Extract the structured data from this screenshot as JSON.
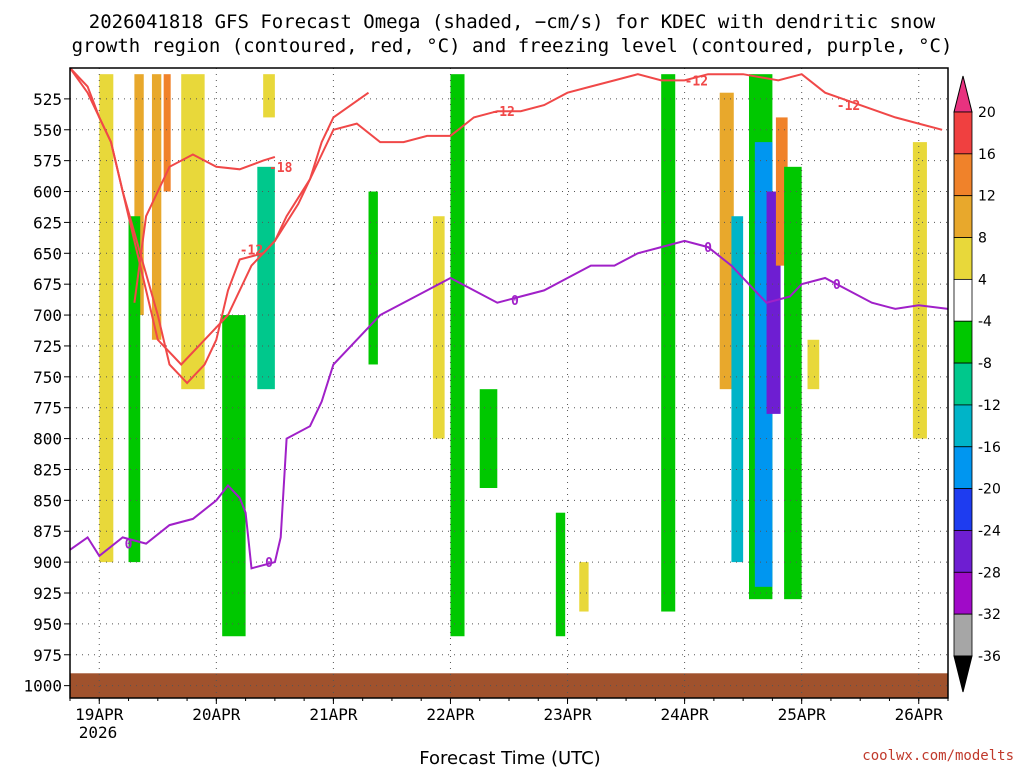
{
  "chart_data": {
    "type": "heatmap",
    "title_line1": "2026041818 GFS Forecast Omega (shaded, −cm/s) for KDEC with dendritic snow",
    "title_line2": "growth region (contoured, red, °C) and freezing level (contoured, purple, °C)",
    "xlabel": "Forecast Time (UTC)",
    "credit": "coolwx.com/modelts",
    "x_ticks": [
      "19APR",
      "20APR",
      "21APR",
      "22APR",
      "23APR",
      "24APR",
      "25APR",
      "26APR"
    ],
    "x_year": "2026",
    "x_start_label_hour": "2026-04-18 18Z",
    "xlim_days": [
      18.75,
      26.25
    ],
    "y_ticks": [
      525,
      550,
      575,
      600,
      625,
      650,
      675,
      700,
      725,
      750,
      775,
      800,
      825,
      850,
      875,
      900,
      925,
      950,
      975,
      1000
    ],
    "ylim_hpa": [
      500,
      1010
    ],
    "colorbar": {
      "levels": [
        20,
        16,
        12,
        8,
        4,
        -4,
        -8,
        -12,
        -16,
        -20,
        -24,
        -28,
        -32,
        -36
      ],
      "colors": [
        "#e8327f",
        "#f04040",
        "#f0822a",
        "#e8a82c",
        "#e8d83a",
        "#ffffff",
        "#00c800",
        "#00c88c",
        "#00b4c8",
        "#0096f0",
        "#1e3cf0",
        "#6e1ed2",
        "#a00ac8",
        "#a6a6a6",
        "#000000"
      ]
    },
    "dgz_contours": [
      {
        "label": "-12",
        "color": "#f04848"
      },
      {
        "label": "-18",
        "color": "#f04848"
      }
    ],
    "freezing_level": {
      "label": "0",
      "color": "#a020c8"
    },
    "line_data": {
      "dgz_top": [
        [
          18.75,
          500
        ],
        [
          18.9,
          515
        ],
        [
          19.0,
          540
        ],
        [
          19.1,
          560
        ],
        [
          19.2,
          600
        ],
        [
          19.4,
          680
        ],
        [
          19.5,
          720
        ],
        [
          19.7,
          740
        ],
        [
          19.9,
          720
        ],
        [
          20.1,
          700
        ],
        [
          20.3,
          660
        ],
        [
          20.5,
          640
        ],
        [
          20.7,
          610
        ],
        [
          20.9,
          570
        ],
        [
          21.0,
          550
        ],
        [
          21.2,
          545
        ],
        [
          21.4,
          560
        ],
        [
          21.6,
          560
        ],
        [
          21.8,
          555
        ],
        [
          22.0,
          555
        ],
        [
          22.2,
          540
        ],
        [
          22.4,
          535
        ],
        [
          22.6,
          535
        ],
        [
          22.8,
          530
        ],
        [
          23.0,
          520
        ],
        [
          23.2,
          515
        ],
        [
          23.4,
          510
        ],
        [
          23.6,
          505
        ],
        [
          23.8,
          510
        ],
        [
          24.0,
          510
        ],
        [
          24.2,
          505
        ],
        [
          24.5,
          505
        ],
        [
          24.8,
          510
        ],
        [
          25.0,
          505
        ],
        [
          25.2,
          520
        ],
        [
          25.5,
          530
        ],
        [
          25.8,
          540
        ],
        [
          26.0,
          545
        ],
        [
          26.2,
          550
        ]
      ],
      "dgz_bottom": [
        [
          18.75,
          500
        ],
        [
          18.9,
          520
        ],
        [
          19.1,
          560
        ],
        [
          19.2,
          600
        ],
        [
          19.35,
          650
        ],
        [
          19.5,
          700
        ],
        [
          19.6,
          740
        ],
        [
          19.75,
          755
        ],
        [
          19.9,
          740
        ],
        [
          20.0,
          720
        ],
        [
          20.1,
          680
        ],
        [
          20.2,
          655
        ],
        [
          20.4,
          650
        ],
        [
          20.5,
          640
        ],
        [
          20.6,
          620
        ],
        [
          20.8,
          590
        ],
        [
          20.9,
          560
        ],
        [
          21.0,
          540
        ],
        [
          21.3,
          520
        ]
      ],
      "dgz_inner": [
        [
          19.3,
          690
        ],
        [
          19.4,
          620
        ],
        [
          19.6,
          580
        ],
        [
          19.8,
          570
        ],
        [
          20.0,
          580
        ],
        [
          20.2,
          582
        ],
        [
          20.4,
          575
        ],
        [
          20.5,
          572
        ]
      ],
      "freezing": [
        [
          18.75,
          890
        ],
        [
          18.9,
          880
        ],
        [
          19.0,
          895
        ],
        [
          19.2,
          880
        ],
        [
          19.4,
          885
        ],
        [
          19.6,
          870
        ],
        [
          19.8,
          865
        ],
        [
          20.0,
          850
        ],
        [
          20.1,
          838
        ],
        [
          20.2,
          848
        ],
        [
          20.25,
          860
        ],
        [
          20.3,
          905
        ],
        [
          20.5,
          900
        ],
        [
          20.55,
          880
        ],
        [
          20.6,
          800
        ],
        [
          20.8,
          790
        ],
        [
          20.9,
          770
        ],
        [
          21.0,
          740
        ],
        [
          21.2,
          720
        ],
        [
          21.4,
          700
        ],
        [
          21.6,
          690
        ],
        [
          21.8,
          680
        ],
        [
          22.0,
          670
        ],
        [
          22.2,
          680
        ],
        [
          22.4,
          690
        ],
        [
          22.6,
          685
        ],
        [
          22.8,
          680
        ],
        [
          23.0,
          670
        ],
        [
          23.2,
          660
        ],
        [
          23.4,
          660
        ],
        [
          23.6,
          650
        ],
        [
          23.8,
          645
        ],
        [
          24.0,
          640
        ],
        [
          24.2,
          645
        ],
        [
          24.4,
          660
        ],
        [
          24.6,
          680
        ],
        [
          24.7,
          690
        ],
        [
          24.9,
          685
        ],
        [
          25.0,
          675
        ],
        [
          25.2,
          670
        ],
        [
          25.4,
          680
        ],
        [
          25.6,
          690
        ],
        [
          25.8,
          695
        ],
        [
          26.0,
          692
        ],
        [
          26.25,
          695
        ]
      ]
    },
    "shaded_regions": [
      {
        "x": 19.0,
        "w": 0.12,
        "p0": 505,
        "p1": 900,
        "v": 6
      },
      {
        "x": 19.3,
        "w": 0.08,
        "p0": 505,
        "p1": 700,
        "v": 8
      },
      {
        "x": 19.45,
        "w": 0.08,
        "p0": 505,
        "p1": 720,
        "v": 10
      },
      {
        "x": 19.55,
        "w": 0.06,
        "p0": 505,
        "p1": 600,
        "v": 14
      },
      {
        "x": 19.7,
        "w": 0.2,
        "p0": 505,
        "p1": 760,
        "v": 6
      },
      {
        "x": 19.25,
        "w": 0.1,
        "p0": 620,
        "p1": 900,
        "v": -8
      },
      {
        "x": 20.05,
        "w": 0.2,
        "p0": 700,
        "p1": 960,
        "v": -8
      },
      {
        "x": 20.35,
        "w": 0.15,
        "p0": 580,
        "p1": 760,
        "v": -10
      },
      {
        "x": 20.4,
        "w": 0.1,
        "p0": 505,
        "p1": 540,
        "v": 6
      },
      {
        "x": 21.3,
        "w": 0.08,
        "p0": 600,
        "p1": 740,
        "v": -8
      },
      {
        "x": 21.85,
        "w": 0.1,
        "p0": 620,
        "p1": 800,
        "v": 6
      },
      {
        "x": 22.0,
        "w": 0.12,
        "p0": 505,
        "p1": 960,
        "v": -8
      },
      {
        "x": 22.25,
        "w": 0.15,
        "p0": 760,
        "p1": 840,
        "v": -8
      },
      {
        "x": 22.9,
        "w": 0.08,
        "p0": 860,
        "p1": 960,
        "v": -8
      },
      {
        "x": 23.1,
        "w": 0.08,
        "p0": 900,
        "p1": 940,
        "v": 6
      },
      {
        "x": 23.8,
        "w": 0.12,
        "p0": 505,
        "p1": 940,
        "v": -8
      },
      {
        "x": 24.3,
        "w": 0.12,
        "p0": 520,
        "p1": 760,
        "v": 10
      },
      {
        "x": 24.4,
        "w": 0.1,
        "p0": 620,
        "p1": 900,
        "v": -14
      },
      {
        "x": 24.55,
        "w": 0.2,
        "p0": 505,
        "p1": 930,
        "v": -8
      },
      {
        "x": 24.6,
        "w": 0.15,
        "p0": 560,
        "p1": 920,
        "v": -18
      },
      {
        "x": 24.7,
        "w": 0.12,
        "p0": 600,
        "p1": 780,
        "v": -26
      },
      {
        "x": 24.78,
        "w": 0.1,
        "p0": 540,
        "p1": 660,
        "v": 14
      },
      {
        "x": 24.85,
        "w": 0.15,
        "p0": 580,
        "p1": 930,
        "v": -8
      },
      {
        "x": 25.05,
        "w": 0.1,
        "p0": 720,
        "p1": 760,
        "v": 6
      },
      {
        "x": 25.95,
        "w": 0.12,
        "p0": 560,
        "p1": 800,
        "v": 6
      }
    ]
  }
}
